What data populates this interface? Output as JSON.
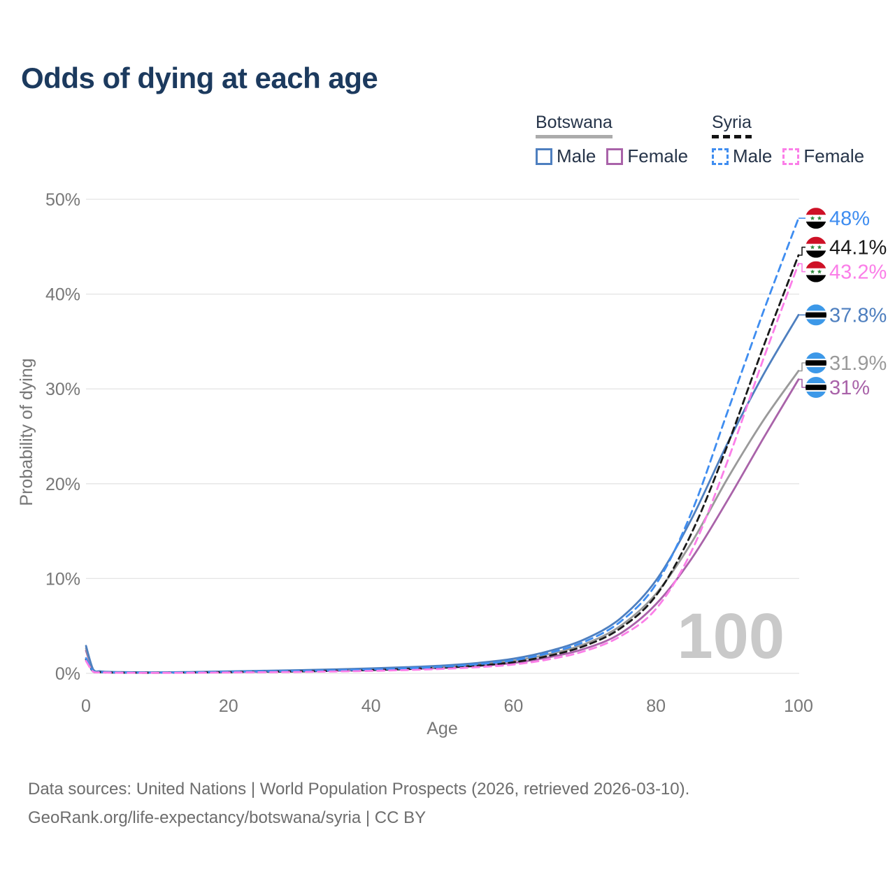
{
  "title": "Odds of dying at each age",
  "watermark": "100",
  "legend": {
    "groups": [
      {
        "country": "Botswana",
        "line_style": "solid",
        "underline_color": "#ababab",
        "items": [
          {
            "label": "Male",
            "color": "#4E7FBF"
          },
          {
            "label": "Female",
            "color": "#A963A9"
          }
        ]
      },
      {
        "country": "Syria",
        "line_style": "dashed",
        "underline_color": "#141414",
        "items": [
          {
            "label": "Male",
            "color": "#3F8DF0"
          },
          {
            "label": "Female",
            "color": "#FB7EE8"
          }
        ]
      }
    ]
  },
  "chart_data": {
    "type": "line",
    "title": "Odds of dying at each age",
    "xlabel": "Age",
    "ylabel": "Probability of dying",
    "xlim": [
      0,
      100
    ],
    "ylim": [
      0,
      50
    ],
    "x_ticks": [
      0,
      20,
      40,
      60,
      80,
      100
    ],
    "y_ticks": [
      "0%",
      "10%",
      "20%",
      "30%",
      "40%",
      "50%"
    ],
    "grid": "horizontal",
    "legend_position": "top-right",
    "x": [
      0,
      1,
      2,
      3,
      5,
      10,
      15,
      20,
      25,
      30,
      35,
      40,
      45,
      50,
      55,
      60,
      65,
      70,
      75,
      80,
      85,
      90,
      95,
      100
    ],
    "series": [
      {
        "name": "Botswana Female",
        "country": "Botswana",
        "sex": "female",
        "dashed": false,
        "color": "#A963A9",
        "end_value": 31,
        "end_label": "31%",
        "values": [
          2.4,
          0.31,
          0.16,
          0.12,
          0.09,
          0.08,
          0.1,
          0.13,
          0.17,
          0.21,
          0.27,
          0.34,
          0.44,
          0.57,
          0.78,
          1.1,
          1.7,
          2.6,
          4.2,
          7.3,
          12.1,
          18.2,
          24.7,
          31.0
        ]
      },
      {
        "name": "Botswana All",
        "country": "Botswana",
        "sex": "all",
        "dashed": false,
        "color": "#9A9A9A",
        "end_value": 31.9,
        "end_label": "31.9%",
        "values": [
          2.65,
          0.36,
          0.19,
          0.14,
          0.11,
          0.09,
          0.12,
          0.17,
          0.22,
          0.27,
          0.34,
          0.43,
          0.54,
          0.7,
          0.94,
          1.33,
          2.03,
          3.1,
          5.0,
          8.4,
          13.8,
          20.5,
          26.6,
          31.9
        ]
      },
      {
        "name": "Botswana Male",
        "country": "Botswana",
        "sex": "male",
        "dashed": false,
        "color": "#4E7FBF",
        "end_value": 37.8,
        "end_label": "37.8%",
        "values": [
          2.9,
          0.42,
          0.22,
          0.16,
          0.13,
          0.11,
          0.15,
          0.21,
          0.27,
          0.34,
          0.42,
          0.52,
          0.65,
          0.82,
          1.1,
          1.55,
          2.35,
          3.6,
          5.8,
          9.8,
          16.3,
          24.2,
          31.4,
          37.8
        ]
      },
      {
        "name": "Syria All",
        "country": "Syria",
        "sex": "all",
        "dashed": true,
        "color": "#1A1A1A",
        "end_value": 44.1,
        "end_label": "44.1%",
        "values": [
          1.45,
          0.19,
          0.12,
          0.09,
          0.07,
          0.06,
          0.09,
          0.12,
          0.16,
          0.21,
          0.27,
          0.35,
          0.45,
          0.6,
          0.82,
          1.18,
          1.85,
          2.9,
          4.75,
          8.2,
          14.8,
          24.0,
          34.3,
          44.1
        ]
      },
      {
        "name": "Syria Male",
        "country": "Syria",
        "sex": "male",
        "dashed": true,
        "color": "#3F8DF0",
        "end_value": 48,
        "end_label": "48%",
        "values": [
          1.6,
          0.22,
          0.13,
          0.1,
          0.08,
          0.07,
          0.1,
          0.15,
          0.2,
          0.25,
          0.32,
          0.41,
          0.53,
          0.7,
          0.97,
          1.38,
          2.15,
          3.35,
          5.45,
          9.4,
          17.0,
          27.5,
          38.0,
          48.0
        ]
      },
      {
        "name": "Syria Female",
        "country": "Syria",
        "sex": "female",
        "dashed": true,
        "color": "#FB7EE8",
        "end_value": 43.2,
        "end_label": "43.2%",
        "values": [
          1.3,
          0.17,
          0.1,
          0.08,
          0.06,
          0.05,
          0.06,
          0.09,
          0.12,
          0.15,
          0.2,
          0.26,
          0.35,
          0.47,
          0.65,
          0.93,
          1.48,
          2.35,
          3.9,
          6.8,
          12.9,
          22.3,
          33.0,
          43.2
        ]
      }
    ],
    "flag_colors": {
      "botswana_blue": "#3C98E8",
      "syria_red": "#CE1126",
      "syria_green": "#2E8B3D"
    }
  },
  "footer": {
    "line1": "Data sources: United Nations | World Population Prospects (2026, retrieved 2026-03-10).",
    "line2": "GeoRank.org/life-expectancy/botswana/syria | CC BY"
  }
}
